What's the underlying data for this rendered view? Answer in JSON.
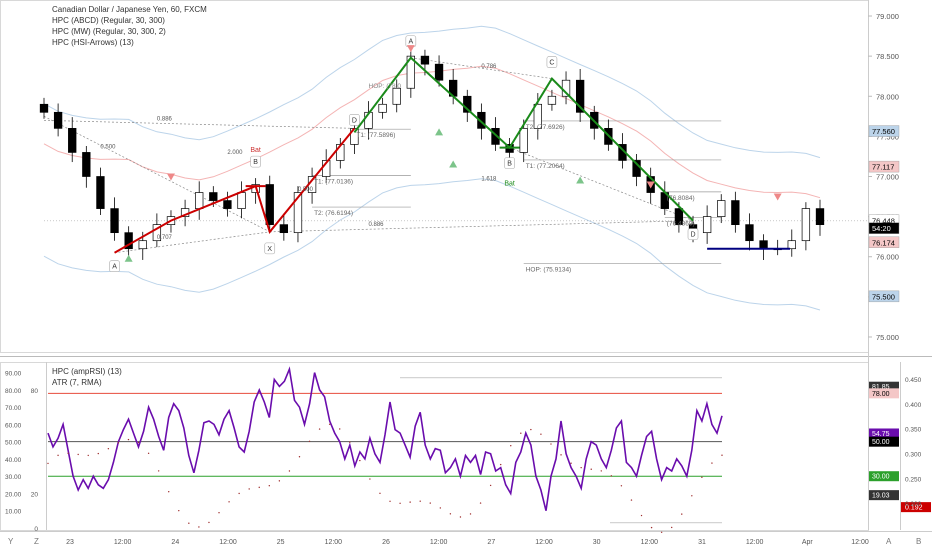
{
  "legend_main": [
    "Canadian Dollar / Japanese Yen, 60, FXCM",
    "HPC (ABCD) (Regular, 30, 300)",
    "HPC (MW) (Regular, 30, 300, 2)",
    "HPC (HSI-Arrows) (13)"
  ],
  "legend_sub": [
    "HPC (ampRSI) (13)",
    "ATR (7, RMA)"
  ],
  "colors": {
    "up_candle": "#ffffff",
    "down_candle": "#000000",
    "bearish_leg": "#cc0000",
    "bullish_leg": "#1a8a1a",
    "hop_line": "#000080",
    "rsi_line": "#6a0dad",
    "level_78": "#e74c3c",
    "level_30": "#2ca02c",
    "bands": "#bcd4ea",
    "mid_band": "#f4b4b4"
  },
  "chart_data": [
    {
      "type": "candlestick",
      "ylim": [
        74.9,
        79.1
      ],
      "y_ticks": [
        "79.000",
        "78.500",
        "78.000",
        "77.500",
        "77.000",
        "76.500",
        "76.000",
        "75.500",
        "75.000"
      ],
      "x_ticks": [
        "23",
        "12:00",
        "24",
        "12:00",
        "25",
        "12:00",
        "26",
        "12:00",
        "27",
        "12:00",
        "30",
        "12:00",
        "31",
        "12:00",
        "Apr",
        "12:00"
      ],
      "candles_close_approx": [
        77.8,
        77.6,
        77.3,
        77.0,
        76.6,
        76.3,
        76.1,
        76.2,
        76.4,
        76.5,
        76.6,
        76.8,
        76.7,
        76.6,
        76.8,
        76.9,
        76.4,
        76.3,
        76.8,
        77.0,
        77.2,
        77.4,
        77.6,
        77.8,
        77.9,
        78.1,
        78.5,
        78.4,
        78.2,
        78.0,
        77.8,
        77.6,
        77.4,
        77.3,
        77.6,
        77.9,
        78.0,
        78.2,
        77.8,
        77.6,
        77.4,
        77.2,
        77.0,
        76.8,
        76.6,
        76.4,
        76.3,
        76.5,
        76.7,
        76.4,
        76.2,
        76.1,
        76.1,
        76.2,
        76.6,
        76.4
      ],
      "patterns": [
        {
          "name": "Bat",
          "points": {
            "X": 76.31,
            "A": 76.05,
            "B": 76.88,
            "D": 77.6
          }
        },
        {
          "name": "Bat",
          "points": {
            "A": 78.48,
            "B": 77.36,
            "C": 78.22,
            "D": 76.45
          }
        }
      ],
      "labels": {
        "A1": "A",
        "X": "X",
        "B1": "B",
        "bat1": "Bat",
        "D1": "D",
        "A2": "A",
        "B2": "B",
        "C2": "C",
        "D2": "D",
        "bat2": "Bat"
      },
      "ratios": [
        "0.886",
        "0.500",
        "2.000",
        "0.707",
        "0.786",
        "0.500",
        "1.618",
        "0.886"
      ],
      "targets": [
        {
          "label": "T1: (77.0136)",
          "value": 77.0136
        },
        {
          "label": "T2: (76.6194)",
          "value": 76.6194
        },
        {
          "label": "T1: (77.5896)",
          "value": 77.5896
        },
        {
          "label": "T2: (77.6926)",
          "value": 77.6926
        },
        {
          "label": "T1: (77.2064)",
          "value": 77.2064
        },
        {
          "label": "(76.8084)",
          "value": 76.8084
        },
        {
          "label": "(76.4869)",
          "value": 76.4869
        },
        {
          "label": "HOP: (75.9134)",
          "value": 75.9134
        }
      ],
      "top_label_fragment": "HOP: (78.0",
      "price_tags": [
        {
          "text": "77.560",
          "value": 77.56,
          "bg": "#bcd4ea",
          "fg": "#000000"
        },
        {
          "text": "77.117",
          "value": 77.117,
          "bg": "#f4c7c7",
          "fg": "#000000"
        },
        {
          "text": "76.448",
          "value": 76.448,
          "bg": "#ffffff",
          "fg": "#000000"
        },
        {
          "text": "54:20",
          "value": 76.35,
          "bg": "#000000",
          "fg": "#ffffff"
        },
        {
          "text": "76.174",
          "value": 76.174,
          "bg": "#f4c7c7",
          "fg": "#000000"
        },
        {
          "text": "75.500",
          "value": 75.5,
          "bg": "#bcd4ea",
          "fg": "#000000"
        }
      ],
      "hop_value": 76.1
    },
    {
      "type": "line",
      "ylim": [
        0,
        95
      ],
      "y_ticks": [
        "90.00",
        "80.00",
        "70.00",
        "60.00",
        "50.00",
        "40.00",
        "30.00",
        "20.00",
        "10.00"
      ],
      "levels_left": [
        "80",
        "20",
        "0"
      ],
      "series": [
        {
          "name": "HPC (ampRSI) (13)",
          "values": [
            55,
            47,
            52,
            60,
            45,
            30,
            22,
            28,
            23,
            30,
            25,
            23,
            28,
            38,
            50,
            57,
            63,
            55,
            47,
            56,
            70,
            63,
            53,
            45,
            64,
            72,
            68,
            58,
            42,
            32,
            45,
            61,
            62,
            60,
            54,
            63,
            68,
            58,
            47,
            44,
            56,
            73,
            80,
            73,
            64,
            86,
            82,
            85,
            92,
            74,
            70,
            60,
            72,
            90,
            80,
            76,
            62,
            55,
            50,
            40,
            48,
            36,
            44,
            40,
            52,
            43,
            38,
            54,
            73,
            57,
            55,
            48,
            41,
            59,
            67,
            48,
            40,
            46,
            45,
            32,
            35,
            40,
            30,
            42,
            38,
            42,
            31,
            44,
            43,
            33,
            35,
            25,
            20,
            38,
            44,
            55,
            48,
            30,
            22,
            10,
            30,
            40,
            62,
            43,
            35,
            30,
            23,
            40,
            50,
            48,
            40,
            35,
            45,
            58,
            62,
            38,
            35,
            30,
            42,
            53,
            56,
            40,
            28,
            35,
            33,
            40,
            36,
            30,
            45,
            68,
            62,
            72,
            60,
            55,
            65
          ]
        }
      ],
      "atr_ylim": [
        0.15,
        0.48
      ],
      "atr_ticks": [
        "0.450",
        "0.400",
        "0.350",
        "0.300",
        "0.250",
        "0.200"
      ],
      "tags": [
        {
          "text": "81.85",
          "value": 81.85,
          "bg": "#333333",
          "fg": "#ffffff"
        },
        {
          "text": "78.00",
          "value": 78,
          "bg": "#f4c7c7",
          "fg": "#000000"
        },
        {
          "text": "54.75",
          "value": 54.75,
          "bg": "#6a0dad",
          "fg": "#ffffff"
        },
        {
          "text": "50.00",
          "value": 50,
          "bg": "#000000",
          "fg": "#ffffff"
        },
        {
          "text": "30.00",
          "value": 30,
          "bg": "#2ca02c",
          "fg": "#ffffff"
        },
        {
          "text": "19.03",
          "value": 19.03,
          "bg": "#333333",
          "fg": "#ffffff"
        }
      ],
      "atr_tag": {
        "text": "0.192",
        "bg": "#cc0000",
        "fg": "#ffffff"
      }
    }
  ],
  "corner_labels": {
    "y": "Y",
    "z": "Z",
    "a": "A",
    "b": "B"
  }
}
